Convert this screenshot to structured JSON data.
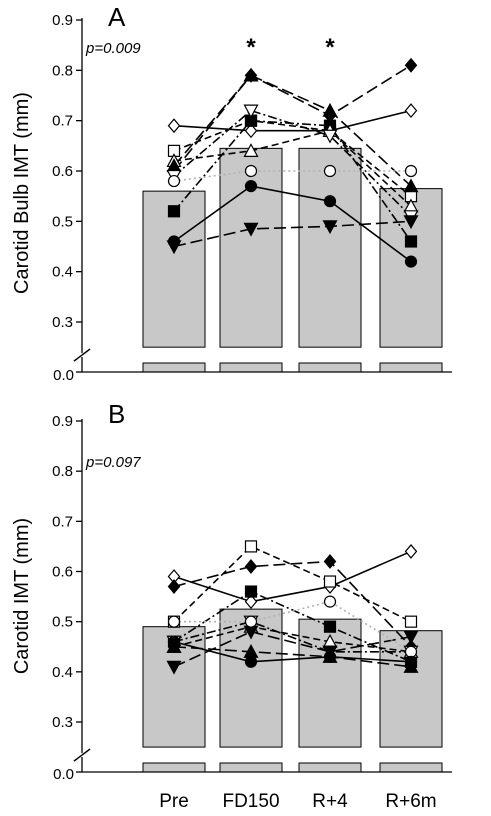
{
  "chart_data": [
    {
      "type": "bar",
      "panel_label": "A",
      "ylabel": "Carotid Bulb IMT (mm)",
      "ylim": [
        0.2,
        0.9
      ],
      "yticks": [
        "0.3",
        "0.4",
        "0.5",
        "0.6",
        "0.7",
        "0.8",
        "0.9"
      ],
      "y_break_label": "0.0",
      "categories": [
        "Pre",
        "FD150",
        "R+4",
        "R+6m"
      ],
      "values": [
        0.56,
        0.645,
        0.645,
        0.565
      ],
      "p_value": "p=0.009",
      "significance": [
        "",
        "*",
        "*",
        ""
      ],
      "subjects": [
        {
          "marker": "diamond-open",
          "line": "solid",
          "values": [
            0.69,
            0.68,
            0.68,
            0.72
          ]
        },
        {
          "marker": "diamond-filled",
          "line": "long-dash",
          "values": [
            0.6,
            0.79,
            0.71,
            0.81
          ]
        },
        {
          "marker": "square-open",
          "line": "dash",
          "values": [
            0.64,
            0.7,
            0.68,
            0.55
          ]
        },
        {
          "marker": "square-filled",
          "line": "dash-dot",
          "values": [
            0.52,
            0.7,
            0.69,
            0.46
          ]
        },
        {
          "marker": "triangle-up-open",
          "line": "dash",
          "values": [
            0.62,
            0.64,
            0.68,
            0.53
          ]
        },
        {
          "marker": "triangle-up-filled",
          "line": "long-dash",
          "values": [
            0.61,
            0.79,
            0.72,
            0.57
          ]
        },
        {
          "marker": "triangle-down-open",
          "line": "dash-dot",
          "values": [
            0.59,
            0.72,
            0.67,
            0.51
          ]
        },
        {
          "marker": "triangle-down-filled",
          "line": "long-dash",
          "values": [
            0.45,
            0.485,
            0.49,
            0.5
          ]
        },
        {
          "marker": "circle-open",
          "line": "dotted",
          "values": [
            0.58,
            0.6,
            0.6,
            0.6
          ]
        },
        {
          "marker": "circle-filled",
          "line": "solid",
          "values": [
            0.46,
            0.57,
            0.54,
            0.42
          ]
        }
      ]
    },
    {
      "type": "bar",
      "panel_label": "B",
      "ylabel": "Carotid IMT (mm)",
      "ylim": [
        0.2,
        0.9
      ],
      "yticks": [
        "0.3",
        "0.4",
        "0.5",
        "0.6",
        "0.7",
        "0.8",
        "0.9"
      ],
      "y_break_label": "0.0",
      "categories": [
        "Pre",
        "FD150",
        "R+4",
        "R+6m"
      ],
      "values": [
        0.49,
        0.525,
        0.505,
        0.482
      ],
      "p_value": "p=0.097",
      "significance": [
        "",
        "",
        "",
        ""
      ],
      "subjects": [
        {
          "marker": "diamond-open",
          "line": "solid",
          "values": [
            0.59,
            0.54,
            0.57,
            0.64
          ]
        },
        {
          "marker": "diamond-filled",
          "line": "long-dash",
          "values": [
            0.57,
            0.61,
            0.62,
            0.45
          ]
        },
        {
          "marker": "square-open",
          "line": "dash",
          "values": [
            0.5,
            0.65,
            0.58,
            0.5
          ]
        },
        {
          "marker": "square-filled",
          "line": "dash-dot",
          "values": [
            0.46,
            0.56,
            0.49,
            0.42
          ]
        },
        {
          "marker": "triangle-up-open",
          "line": "dash",
          "values": [
            0.45,
            0.49,
            0.46,
            0.44
          ]
        },
        {
          "marker": "triangle-up-filled",
          "line": "long-dash",
          "values": [
            0.45,
            0.44,
            0.43,
            0.41
          ]
        },
        {
          "marker": "triangle-down-open",
          "line": "dash-dot",
          "values": [
            0.46,
            0.5,
            0.44,
            0.44
          ]
        },
        {
          "marker": "triangle-down-filled",
          "line": "long-dash",
          "values": [
            0.41,
            0.48,
            0.44,
            0.47
          ]
        },
        {
          "marker": "circle-open",
          "line": "dotted",
          "values": [
            0.5,
            0.5,
            0.54,
            0.44
          ]
        },
        {
          "marker": "circle-filled",
          "line": "solid",
          "values": [
            0.46,
            0.42,
            0.43,
            0.42
          ]
        }
      ]
    }
  ],
  "colors": {
    "bar_fill": "#c8c8c8",
    "bar_stroke": "#000000",
    "axis": "#000000",
    "dotted": "#b0b0b0"
  }
}
